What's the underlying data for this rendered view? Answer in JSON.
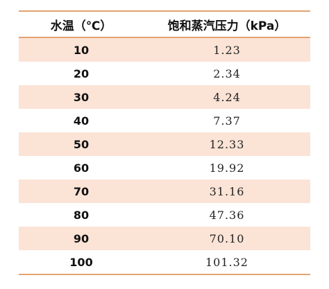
{
  "table": {
    "headers": {
      "temperature": "水温（℃）",
      "pressure": "饱和蒸汽压力（kPa）"
    },
    "rows": [
      {
        "temperature": "10",
        "pressure": "1.23"
      },
      {
        "temperature": "20",
        "pressure": "2.34"
      },
      {
        "temperature": "30",
        "pressure": "4.24"
      },
      {
        "temperature": "40",
        "pressure": "7.37"
      },
      {
        "temperature": "50",
        "pressure": "12.33"
      },
      {
        "temperature": "60",
        "pressure": "19.92"
      },
      {
        "temperature": "70",
        "pressure": "31.16"
      },
      {
        "temperature": "80",
        "pressure": "47.36"
      },
      {
        "temperature": "90",
        "pressure": "70.10"
      },
      {
        "temperature": "100",
        "pressure": "101.32"
      }
    ]
  },
  "colors": {
    "rule": "#e3a36f",
    "shaded_row": "#fbe3d6",
    "plain_row": "#ffffff"
  }
}
